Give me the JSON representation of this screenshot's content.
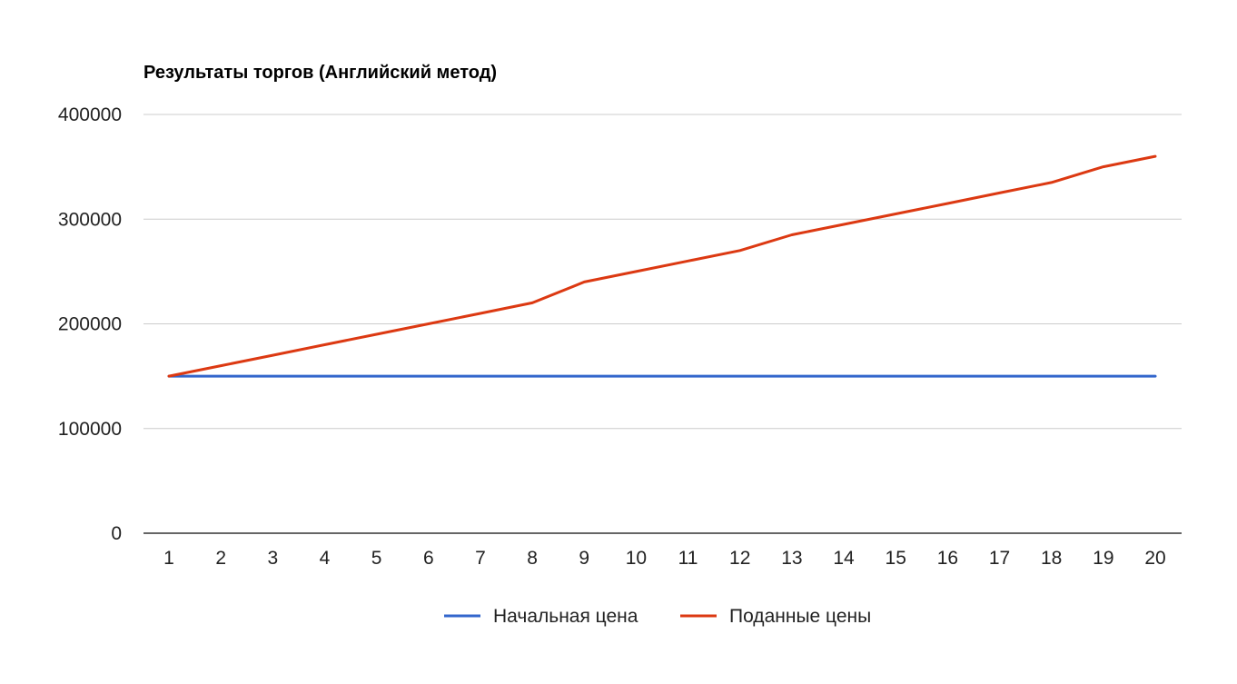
{
  "chart_data": {
    "type": "line",
    "title": "Результаты торгов (Английский метод)",
    "xlabel": "",
    "ylabel": "",
    "categories": [
      "1",
      "2",
      "3",
      "4",
      "5",
      "6",
      "7",
      "8",
      "9",
      "10",
      "11",
      "12",
      "13",
      "14",
      "15",
      "16",
      "17",
      "18",
      "19",
      "20"
    ],
    "y_ticks": [
      "0",
      "100000",
      "200000",
      "300000",
      "400000"
    ],
    "ylim": [
      0,
      400000
    ],
    "grid": true,
    "legend_position": "bottom",
    "series": [
      {
        "name": "Начальная цена",
        "color": "#3366cc",
        "values": [
          150000,
          150000,
          150000,
          150000,
          150000,
          150000,
          150000,
          150000,
          150000,
          150000,
          150000,
          150000,
          150000,
          150000,
          150000,
          150000,
          150000,
          150000,
          150000,
          150000
        ]
      },
      {
        "name": "Поданные цены",
        "color": "#dc3912",
        "values": [
          150000,
          160000,
          170000,
          180000,
          190000,
          200000,
          210000,
          220000,
          240000,
          250000,
          260000,
          270000,
          285000,
          295000,
          305000,
          315000,
          325000,
          335000,
          350000,
          360000
        ]
      }
    ]
  }
}
